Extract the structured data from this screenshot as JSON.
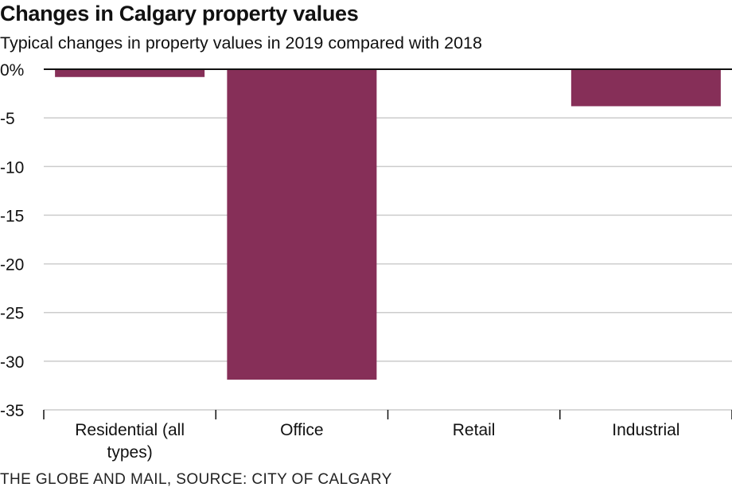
{
  "chart_data": {
    "type": "bar",
    "title": "Changes in Calgary property values",
    "subtitle": "Typical changes in property values in 2019 compared with 2018",
    "categories": [
      "Residential (all types)",
      "Office",
      "Retail",
      "Industrial"
    ],
    "values": [
      -0.8,
      -31.9,
      0,
      -3.8
    ],
    "ylim": [
      -35,
      0
    ],
    "yticks": [
      0,
      -5,
      -10,
      -15,
      -20,
      -25,
      -30,
      -35
    ],
    "ytick_labels": [
      "0%",
      "-5",
      "-10",
      "-15",
      "-20",
      "-25",
      "-30",
      "-35"
    ],
    "xlabel": "",
    "ylabel": "",
    "grid": true,
    "bar_color": "#862f58",
    "source": "THE GLOBE AND MAIL, SOURCE: CITY OF CALGARY"
  }
}
